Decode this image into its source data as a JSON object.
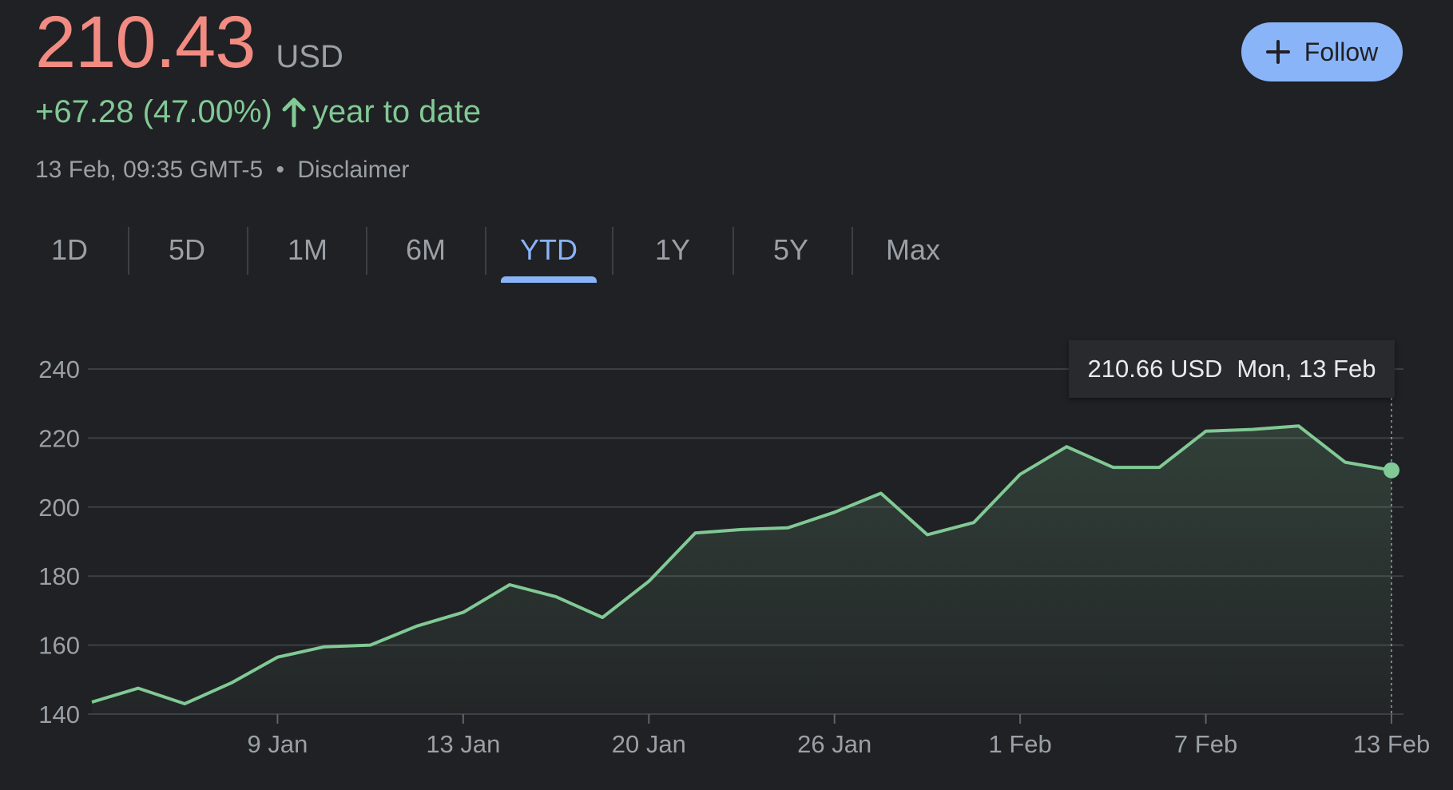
{
  "quote": {
    "price": "210.43",
    "currency": "USD",
    "change": "+67.28 (47.00%)",
    "change_period": "year to date",
    "timestamp": "13 Feb, 09:35 GMT-5",
    "separator": "•",
    "disclaimer": "Disclaimer"
  },
  "follow_button": {
    "label": "Follow",
    "icon": "plus-icon"
  },
  "tabs": [
    {
      "label": "1D",
      "active": false
    },
    {
      "label": "5D",
      "active": false
    },
    {
      "label": "1M",
      "active": false
    },
    {
      "label": "6M",
      "active": false
    },
    {
      "label": "YTD",
      "active": true
    },
    {
      "label": "1Y",
      "active": false
    },
    {
      "label": "5Y",
      "active": false
    },
    {
      "label": "Max",
      "active": false
    }
  ],
  "tooltip": {
    "value": "210.66 USD",
    "date": "Mon, 13 Feb"
  },
  "colors": {
    "background": "#202124",
    "price_down": "#f28b82",
    "positive": "#81c995",
    "accent": "#8ab4f8",
    "grid": "#3c4043",
    "text_secondary": "#9aa0a6"
  },
  "chart_data": {
    "type": "area",
    "ylim": [
      140,
      240
    ],
    "yticks": [
      140,
      160,
      180,
      200,
      220,
      240
    ],
    "xtick_labels": [
      "9 Jan",
      "13 Jan",
      "20 Jan",
      "26 Jan",
      "1 Feb",
      "7 Feb",
      "13 Feb"
    ],
    "grid": true,
    "line_color": "#81c995",
    "x": [
      "3 Jan",
      "4 Jan",
      "5 Jan",
      "6 Jan",
      "9 Jan",
      "10 Jan",
      "11 Jan",
      "12 Jan",
      "13 Jan",
      "17 Jan",
      "18 Jan",
      "19 Jan",
      "20 Jan",
      "23 Jan",
      "24 Jan",
      "25 Jan",
      "26 Jan",
      "27 Jan",
      "30 Jan",
      "31 Jan",
      "1 Feb",
      "2 Feb",
      "3 Feb",
      "6 Feb",
      "7 Feb",
      "8 Feb",
      "9 Feb",
      "10 Feb",
      "13 Feb"
    ],
    "values": [
      143.5,
      147.5,
      143,
      149,
      156.5,
      159.5,
      160,
      165.5,
      169.5,
      177.5,
      174,
      168,
      178.5,
      192.5,
      193.5,
      194,
      198.5,
      204,
      192,
      195.5,
      209.5,
      217.5,
      211.5,
      211.5,
      222,
      222.5,
      223.5,
      213,
      210.66
    ]
  }
}
